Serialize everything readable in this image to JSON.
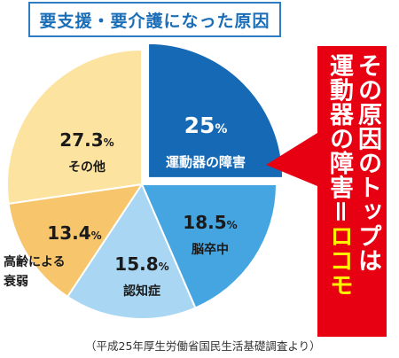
{
  "header": {
    "title": "要支援・要介護になった原因"
  },
  "callout": {
    "line1": "その原因のトップは",
    "line2_prefix": "運動器の障害＝",
    "line2_highlight": "ロコモ"
  },
  "source": "（平成25年厚生労働省国民生活基礎調査より）",
  "colors": {
    "locomotive": "#1569b5",
    "brain": "#45a5e0",
    "dementia": "#a9d6f3",
    "frailty": "#f7c66c",
    "other": "#fde3a0",
    "callout": "#e60012",
    "highlight": "#fff100"
  },
  "chart_data": {
    "type": "pie",
    "title": "要支援・要介護になった原因",
    "slices": [
      {
        "label": "運動器の障害",
        "value": 25,
        "display": "25",
        "color": "#1569b5",
        "text_color": "#ffffff"
      },
      {
        "label": "脳卒中",
        "value": 18.5,
        "display": "18.5",
        "color": "#45a5e0",
        "text_color": "#1a1a1a"
      },
      {
        "label": "認知症",
        "value": 15.8,
        "display": "15.8",
        "color": "#a9d6f3",
        "text_color": "#1a1a1a"
      },
      {
        "label": "高齢による衰弱",
        "value": 13.4,
        "display": "13.4",
        "color": "#f7c66c",
        "text_color": "#1a1a1a"
      },
      {
        "label": "その他",
        "value": 27.3,
        "display": "27.3",
        "color": "#fde3a0",
        "text_color": "#1a1a1a"
      }
    ],
    "unit": "%",
    "exploded_slice": "運動器の障害"
  }
}
